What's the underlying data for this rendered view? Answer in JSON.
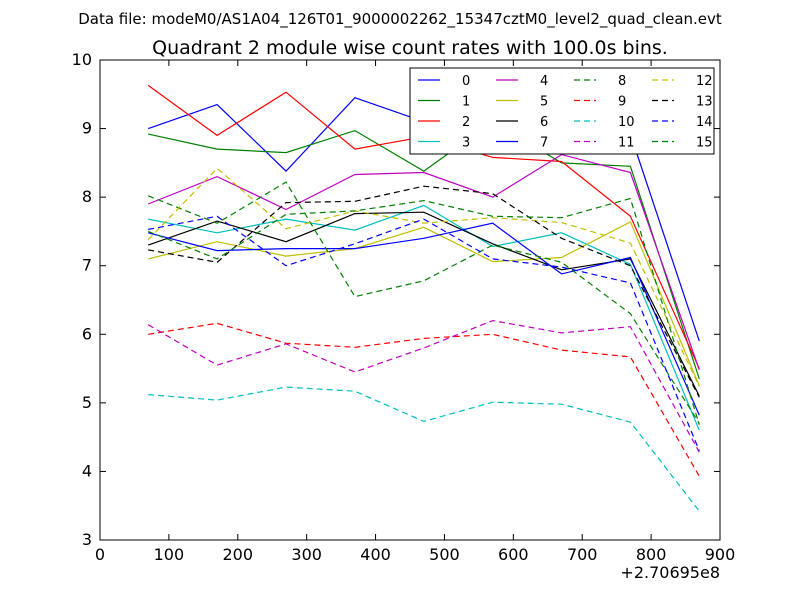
{
  "chart_data": {
    "type": "line",
    "suptitle": "Data file: modeM0/AS1A04_126T01_9000002262_15347cztM0_level2_quad_clean.evt",
    "title": "Quadrant 2 module wise count rates with 100.0s bins.",
    "xlabel": "",
    "ylabel": "",
    "x_offset_label": "+2.70695e8",
    "xlim": [
      0,
      900
    ],
    "ylim": [
      3,
      10
    ],
    "xticks": [
      0,
      100,
      200,
      300,
      400,
      500,
      600,
      700,
      800,
      900
    ],
    "yticks": [
      3,
      4,
      5,
      6,
      7,
      8,
      9,
      10
    ],
    "x": [
      70,
      170,
      270,
      370,
      470,
      570,
      670,
      770,
      870
    ],
    "legend_position": "top-right",
    "series": [
      {
        "name": "0",
        "color": "#0000ff",
        "style": "solid",
        "values": [
          9.0,
          9.35,
          8.38,
          9.45,
          9.1,
          9.2,
          8.98,
          8.92,
          5.9
        ]
      },
      {
        "name": "1",
        "color": "#008000",
        "style": "solid",
        "values": [
          8.92,
          8.7,
          8.65,
          8.97,
          8.38,
          9.1,
          8.5,
          8.45,
          5.35
        ]
      },
      {
        "name": "2",
        "color": "#ff0000",
        "style": "solid",
        "values": [
          9.63,
          8.9,
          9.53,
          8.7,
          8.88,
          8.58,
          8.52,
          7.72,
          5.5
        ]
      },
      {
        "name": "3",
        "color": "#00bfbf",
        "style": "solid",
        "values": [
          7.68,
          7.48,
          7.68,
          7.52,
          7.88,
          7.28,
          7.48,
          7.02,
          4.6
        ]
      },
      {
        "name": "4",
        "color": "#bf00bf",
        "style": "solid",
        "values": [
          7.9,
          8.3,
          7.82,
          8.33,
          8.36,
          8.0,
          8.62,
          8.36,
          5.48
        ]
      },
      {
        "name": "5",
        "color": "#bfbf00",
        "style": "solid",
        "values": [
          7.1,
          7.35,
          7.14,
          7.25,
          7.56,
          7.06,
          7.12,
          7.64,
          5.25
        ]
      },
      {
        "name": "6",
        "color": "#000000",
        "style": "solid",
        "values": [
          7.3,
          7.65,
          7.35,
          7.76,
          7.78,
          7.32,
          6.94,
          7.1,
          5.1
        ]
      },
      {
        "name": "7",
        "color": "#0000ff",
        "style": "solid",
        "values": [
          7.48,
          7.22,
          7.25,
          7.25,
          7.4,
          7.62,
          6.88,
          7.12,
          4.82
        ]
      },
      {
        "name": "8",
        "color": "#008000",
        "style": "dashed",
        "values": [
          8.02,
          7.62,
          8.22,
          6.55,
          6.78,
          7.3,
          7.05,
          6.3,
          4.7
        ]
      },
      {
        "name": "9",
        "color": "#ff0000",
        "style": "dashed",
        "values": [
          6.0,
          6.16,
          5.87,
          5.81,
          5.94,
          6.0,
          5.77,
          5.67,
          3.93
        ]
      },
      {
        "name": "10",
        "color": "#00bfbf",
        "style": "dashed",
        "values": [
          5.12,
          5.04,
          5.23,
          5.17,
          4.73,
          5.01,
          4.98,
          4.72,
          3.42
        ]
      },
      {
        "name": "11",
        "color": "#bf00bf",
        "style": "dashed",
        "values": [
          6.14,
          5.55,
          5.86,
          5.45,
          5.8,
          6.2,
          6.02,
          6.11,
          4.28
        ]
      },
      {
        "name": "12",
        "color": "#bfbf00",
        "style": "dashed",
        "values": [
          7.38,
          8.42,
          7.54,
          7.8,
          7.62,
          7.7,
          7.63,
          7.33,
          5.24
        ]
      },
      {
        "name": "13",
        "color": "#000000",
        "style": "dashed",
        "values": [
          7.23,
          7.05,
          7.92,
          7.94,
          8.16,
          8.05,
          7.4,
          7.0,
          5.08
        ]
      },
      {
        "name": "14",
        "color": "#0000ff",
        "style": "dashed",
        "values": [
          7.53,
          7.72,
          7.0,
          7.32,
          7.68,
          7.1,
          6.98,
          6.75,
          4.3
        ]
      },
      {
        "name": "15",
        "color": "#008000",
        "style": "dashed",
        "values": [
          7.5,
          7.1,
          7.75,
          7.8,
          7.95,
          7.72,
          7.7,
          7.98,
          4.68
        ]
      }
    ]
  }
}
